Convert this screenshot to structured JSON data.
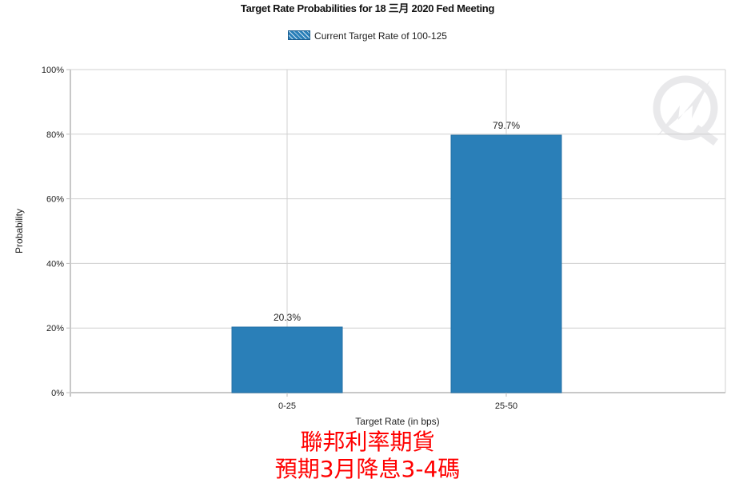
{
  "chart_data": {
    "type": "bar",
    "title": "Target Rate Probabilities for 18 三月  2020  Fed Meeting",
    "legend": [
      {
        "name": "Current Target Rate of 100-125",
        "color": "#2a7fb8"
      }
    ],
    "legend_placement": "top",
    "categories": [
      "0-25",
      "25-50"
    ],
    "values": [
      20.3,
      79.7
    ],
    "data_labels": [
      "20.3%",
      "79.7%"
    ],
    "xlabel": "Target Rate (in bps)",
    "ylabel": "Probability",
    "ylim": [
      0,
      100
    ],
    "yticks": [
      "0%",
      "20%",
      "40%",
      "60%",
      "80%",
      "100%"
    ],
    "grid": true,
    "bar_color": "#2a7fb8"
  },
  "caption": {
    "line1": "聯邦利率期貨",
    "line2": "預期3月降息3-4碼"
  }
}
